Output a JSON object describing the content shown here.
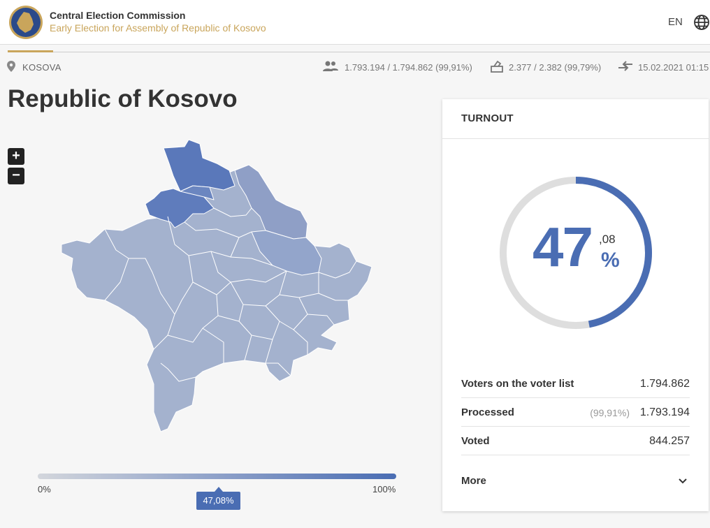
{
  "header": {
    "title": "Central Election Commission",
    "subtitle": "Early Election for Assembly of Republic of Kosovo",
    "language": "EN",
    "logo_icon": "cec-kosovo-emblem",
    "globe_icon": "globe-icon"
  },
  "infobar": {
    "location": "KOSOVA",
    "voters_stat": "1.793.194 / 1.794.862 (99,91%)",
    "stations_stat": "2.377 / 2.382 (99,79%)",
    "updated": "15.02.2021 01:15"
  },
  "page": {
    "title": "Republic of Kosovo"
  },
  "zoom": {
    "in": "+",
    "out": "−"
  },
  "legend": {
    "min": "0%",
    "max": "100%",
    "current": "47,08%",
    "current_value": 0.4708
  },
  "colors": {
    "accent": "#c9a55b",
    "primary": "#4a6db3",
    "map_light": "#a4b2ce",
    "map_dark": "#5a78ba"
  },
  "turnout": {
    "title": "TURNOUT",
    "value_int": "47",
    "value_dec": ",08",
    "percent_sign": "%",
    "fraction": 0.4708,
    "rows": [
      {
        "label": "Voters on the voter list",
        "pct": "",
        "value": "1.794.862"
      },
      {
        "label": "Processed",
        "pct": "(99,91%)",
        "value": "1.793.194"
      },
      {
        "label": "Voted",
        "pct": "",
        "value": "844.257"
      }
    ],
    "more_label": "More"
  }
}
